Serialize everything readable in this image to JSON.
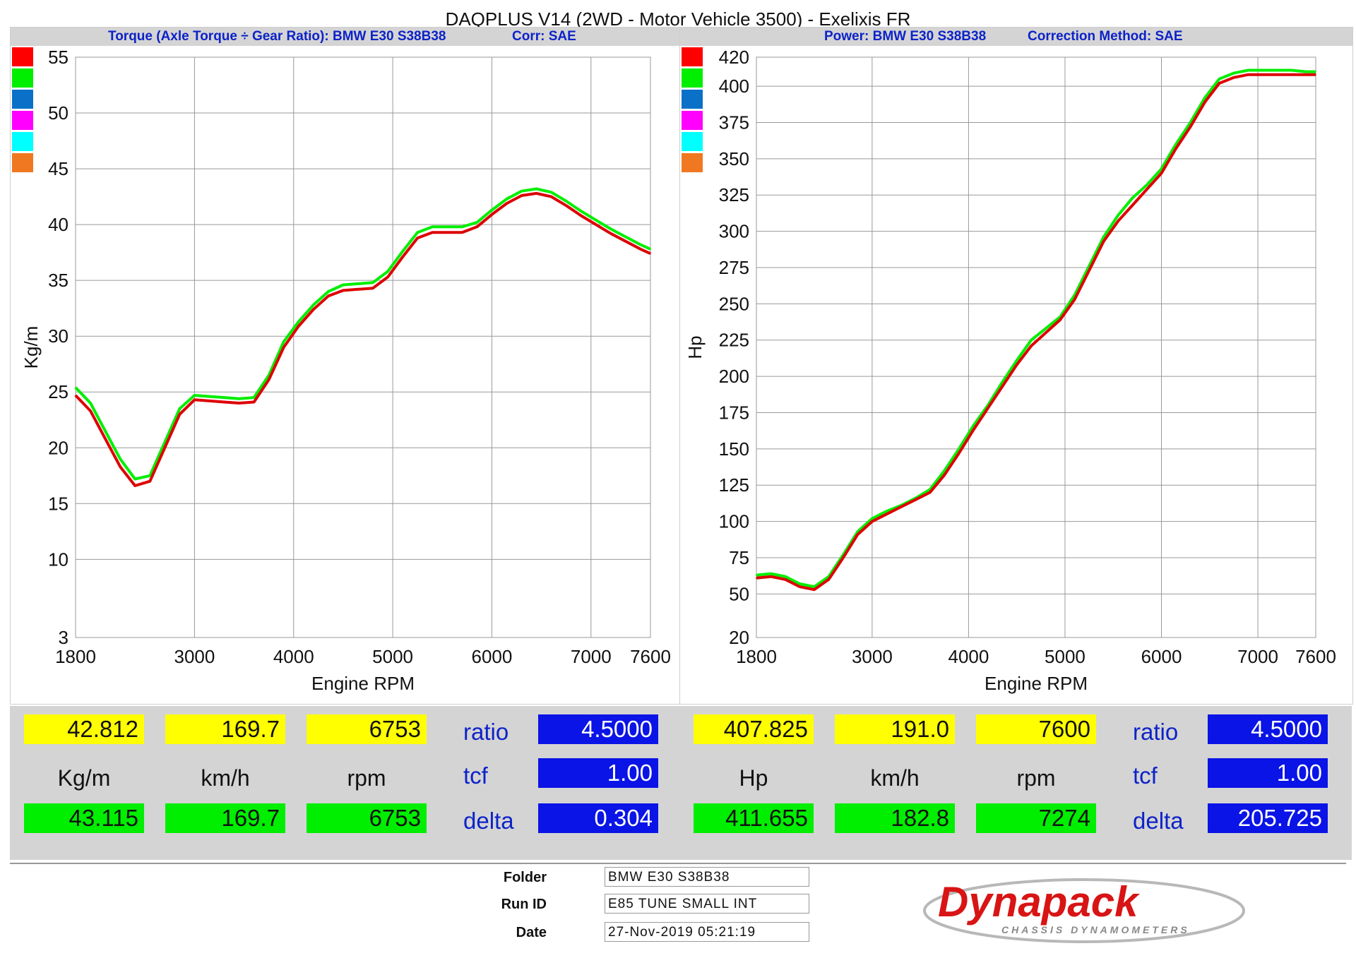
{
  "title": "DAQPLUS V14 (2WD - Motor Vehicle 3500) - Exelixis FR",
  "left_panel": {
    "subtitle_a": "Torque (Axle Torque ÷ Gear Ratio): BMW E30 S38B38",
    "subtitle_b": "Corr: SAE",
    "readouts": {
      "yellow": [
        "42.812",
        "169.7",
        "6753"
      ],
      "units": [
        "Kg/m",
        "km/h",
        "rpm"
      ],
      "green": [
        "43.115",
        "169.7",
        "6753"
      ],
      "params": [
        "ratio",
        "tcf",
        "delta"
      ],
      "param_values": [
        "4.5000",
        "1.00",
        "0.304"
      ]
    }
  },
  "right_panel": {
    "subtitle_a": "Power: BMW E30 S38B38",
    "subtitle_b": "Correction Method: SAE",
    "readouts": {
      "yellow": [
        "407.825",
        "191.0",
        "7600"
      ],
      "units": [
        "Hp",
        "km/h",
        "rpm"
      ],
      "green": [
        "411.655",
        "182.8",
        "7274"
      ],
      "params": [
        "ratio",
        "tcf",
        "delta"
      ],
      "param_values": [
        "4.5000",
        "1.00",
        "205.725"
      ]
    }
  },
  "swatch_colors": [
    "#ff0000",
    "#00ee00",
    "#0a70c8",
    "#ff00ff",
    "#00ffff",
    "#f07820"
  ],
  "footer": {
    "folder_label": "Folder",
    "folder_value": "BMW E30 S38B38",
    "runid_label": "Run ID",
    "runid_value": "E85 TUNE SMALL INT",
    "date_label": "Date",
    "date_value": "27-Nov-2019 05:21:19",
    "logo_text": "Dynapack",
    "logo_subtext": "CHASSIS DYNAMOMETERS"
  },
  "chart_data": [
    {
      "type": "line",
      "xlabel": "Engine RPM",
      "ylabel": "Kg/m",
      "x_ticks": [
        1800,
        3000,
        4000,
        5000,
        6000,
        7000,
        7600
      ],
      "y_ticks": [
        3,
        10,
        15,
        20,
        25,
        30,
        35,
        40,
        45,
        50,
        55
      ],
      "xlim": [
        1800,
        7600
      ],
      "ylim": [
        3,
        55
      ],
      "grid": true,
      "series": [
        {
          "color": "#00ee00",
          "x": [
            1800,
            1950,
            2100,
            2250,
            2400,
            2550,
            2700,
            2850,
            3000,
            3150,
            3300,
            3450,
            3600,
            3750,
            3900,
            4050,
            4200,
            4350,
            4500,
            4650,
            4800,
            4950,
            5100,
            5250,
            5400,
            5550,
            5700,
            5850,
            6000,
            6150,
            6300,
            6450,
            6600,
            6750,
            6900,
            7050,
            7200,
            7350,
            7500,
            7600
          ],
          "values": [
            25.4,
            24.0,
            21.5,
            19.0,
            17.2,
            17.5,
            20.5,
            23.5,
            24.7,
            24.6,
            24.5,
            24.4,
            24.5,
            26.5,
            29.5,
            31.3,
            32.8,
            34.0,
            34.6,
            34.7,
            34.8,
            35.8,
            37.6,
            39.3,
            39.8,
            39.8,
            39.8,
            40.2,
            41.3,
            42.3,
            43.0,
            43.2,
            42.9,
            42.1,
            41.2,
            40.4,
            39.6,
            38.9,
            38.2,
            37.8
          ]
        },
        {
          "color": "#dd0000",
          "x": [
            1800,
            1950,
            2100,
            2250,
            2400,
            2550,
            2700,
            2850,
            3000,
            3150,
            3300,
            3450,
            3600,
            3750,
            3900,
            4050,
            4200,
            4350,
            4500,
            4650,
            4800,
            4950,
            5100,
            5250,
            5400,
            5550,
            5700,
            5850,
            6000,
            6150,
            6300,
            6450,
            6600,
            6750,
            6900,
            7050,
            7200,
            7350,
            7500,
            7600
          ],
          "values": [
            24.7,
            23.3,
            20.8,
            18.3,
            16.6,
            17.0,
            20.0,
            23.0,
            24.3,
            24.2,
            24.1,
            24.0,
            24.1,
            26.1,
            29.0,
            30.9,
            32.4,
            33.6,
            34.1,
            34.2,
            34.3,
            35.3,
            37.1,
            38.8,
            39.3,
            39.3,
            39.3,
            39.8,
            40.9,
            41.9,
            42.6,
            42.8,
            42.5,
            41.7,
            40.8,
            40.0,
            39.2,
            38.5,
            37.8,
            37.4
          ]
        }
      ]
    },
    {
      "type": "line",
      "xlabel": "Engine RPM",
      "ylabel": "Hp",
      "x_ticks": [
        1800,
        3000,
        4000,
        5000,
        6000,
        7000,
        7600
      ],
      "y_ticks": [
        20,
        50,
        75,
        100,
        125,
        150,
        175,
        200,
        225,
        250,
        275,
        300,
        325,
        350,
        375,
        400,
        420
      ],
      "xlim": [
        1800,
        7600
      ],
      "ylim": [
        20,
        420
      ],
      "grid": true,
      "series": [
        {
          "color": "#00ee00",
          "x": [
            1800,
            1950,
            2100,
            2250,
            2400,
            2550,
            2700,
            2850,
            3000,
            3150,
            3300,
            3450,
            3600,
            3750,
            3900,
            4050,
            4200,
            4350,
            4500,
            4650,
            4800,
            4950,
            5100,
            5250,
            5400,
            5550,
            5700,
            5850,
            6000,
            6150,
            6300,
            6450,
            6600,
            6750,
            6900,
            7050,
            7200,
            7350,
            7500,
            7600
          ],
          "values": [
            63,
            64,
            62,
            57,
            55,
            62,
            77,
            93,
            102,
            107,
            111,
            116,
            122,
            135,
            150,
            166,
            180,
            196,
            211,
            225,
            233,
            241,
            256,
            276,
            296,
            311,
            323,
            332,
            343,
            360,
            375,
            392,
            405,
            409,
            411,
            411,
            411,
            411,
            410,
            410
          ]
        },
        {
          "color": "#dd0000",
          "x": [
            1800,
            1950,
            2100,
            2250,
            2400,
            2550,
            2700,
            2850,
            3000,
            3150,
            3300,
            3450,
            3600,
            3750,
            3900,
            4050,
            4200,
            4350,
            4500,
            4650,
            4800,
            4950,
            5100,
            5250,
            5400,
            5550,
            5700,
            5850,
            6000,
            6150,
            6300,
            6450,
            6600,
            6750,
            6900,
            7050,
            7200,
            7350,
            7500,
            7600
          ],
          "values": [
            61,
            62,
            60,
            55,
            53,
            60,
            75,
            91,
            100,
            105,
            110,
            115,
            120,
            132,
            147,
            163,
            178,
            193,
            208,
            221,
            230,
            239,
            253,
            273,
            293,
            307,
            318,
            329,
            340,
            357,
            372,
            389,
            402,
            406,
            408,
            408,
            408,
            408,
            408,
            408
          ]
        }
      ]
    }
  ]
}
